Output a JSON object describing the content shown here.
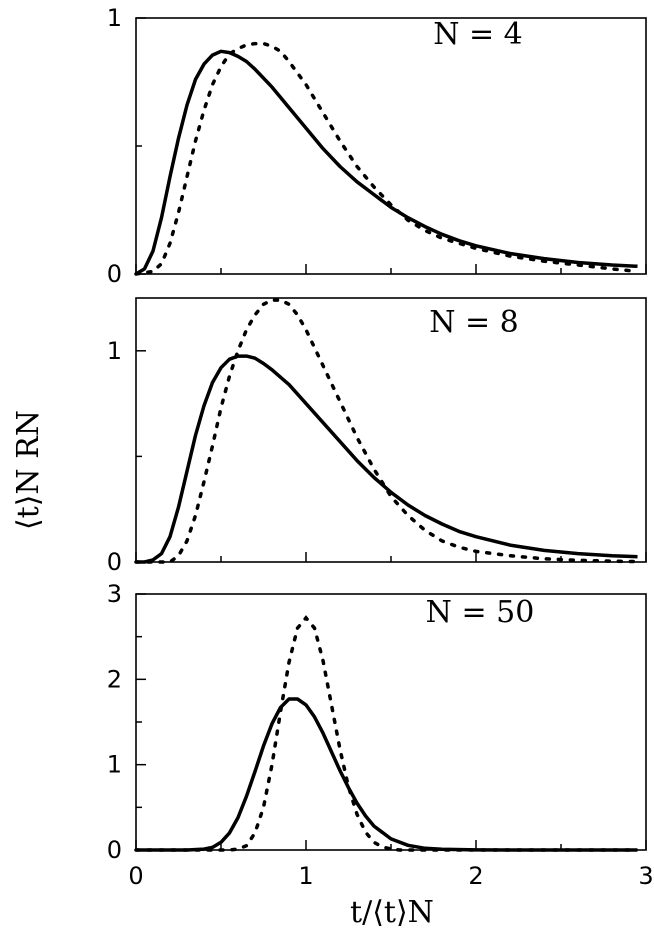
{
  "chart_data": [
    {
      "type": "line",
      "panel_label": "N = 4",
      "ylim": [
        0,
        1
      ],
      "xlim": [
        0,
        3
      ],
      "yticks": [
        "0",
        "1"
      ],
      "series": [
        {
          "style": "solid",
          "x": [
            0,
            0.05,
            0.1,
            0.15,
            0.2,
            0.25,
            0.3,
            0.35,
            0.4,
            0.45,
            0.5,
            0.55,
            0.6,
            0.65,
            0.7,
            0.8,
            0.9,
            1.0,
            1.1,
            1.2,
            1.3,
            1.4,
            1.5,
            1.6,
            1.7,
            1.8,
            1.9,
            2.0,
            2.2,
            2.4,
            2.6,
            2.8,
            2.95
          ],
          "values": [
            0,
            0.02,
            0.09,
            0.22,
            0.38,
            0.53,
            0.66,
            0.76,
            0.82,
            0.855,
            0.87,
            0.865,
            0.85,
            0.83,
            0.8,
            0.73,
            0.65,
            0.57,
            0.49,
            0.42,
            0.36,
            0.31,
            0.26,
            0.22,
            0.185,
            0.155,
            0.13,
            0.11,
            0.08,
            0.06,
            0.045,
            0.035,
            0.03
          ]
        },
        {
          "style": "dotted",
          "x": [
            0,
            0.1,
            0.15,
            0.2,
            0.25,
            0.3,
            0.35,
            0.4,
            0.45,
            0.5,
            0.55,
            0.6,
            0.65,
            0.7,
            0.75,
            0.8,
            0.85,
            0.9,
            1.0,
            1.1,
            1.2,
            1.3,
            1.4,
            1.5,
            1.6,
            1.7,
            1.8,
            1.9,
            2.0,
            2.2,
            2.4,
            2.6,
            2.8,
            2.95
          ],
          "values": [
            0,
            0.01,
            0.04,
            0.12,
            0.24,
            0.38,
            0.52,
            0.64,
            0.74,
            0.81,
            0.86,
            0.88,
            0.895,
            0.9,
            0.9,
            0.89,
            0.87,
            0.83,
            0.74,
            0.63,
            0.52,
            0.42,
            0.34,
            0.27,
            0.21,
            0.17,
            0.14,
            0.12,
            0.1,
            0.07,
            0.05,
            0.035,
            0.02,
            0.01
          ]
        }
      ]
    },
    {
      "type": "line",
      "panel_label": "N = 8",
      "ylim": [
        0,
        1.25
      ],
      "xlim": [
        0,
        3
      ],
      "yticks": [
        "0",
        "1"
      ],
      "series": [
        {
          "style": "solid",
          "x": [
            0,
            0.05,
            0.1,
            0.15,
            0.2,
            0.25,
            0.3,
            0.35,
            0.4,
            0.45,
            0.5,
            0.55,
            0.6,
            0.65,
            0.7,
            0.75,
            0.8,
            0.9,
            1.0,
            1.1,
            1.2,
            1.3,
            1.4,
            1.5,
            1.6,
            1.7,
            1.8,
            1.9,
            2.0,
            2.2,
            2.4,
            2.6,
            2.8,
            2.95
          ],
          "values": [
            0,
            0.0,
            0.01,
            0.04,
            0.12,
            0.26,
            0.43,
            0.6,
            0.74,
            0.85,
            0.92,
            0.96,
            0.975,
            0.975,
            0.965,
            0.94,
            0.91,
            0.84,
            0.75,
            0.66,
            0.57,
            0.48,
            0.4,
            0.33,
            0.27,
            0.22,
            0.18,
            0.145,
            0.12,
            0.08,
            0.055,
            0.04,
            0.03,
            0.025
          ]
        },
        {
          "style": "dotted",
          "x": [
            0,
            0.2,
            0.25,
            0.3,
            0.35,
            0.4,
            0.45,
            0.5,
            0.55,
            0.6,
            0.65,
            0.7,
            0.75,
            0.8,
            0.85,
            0.9,
            0.95,
            1.0,
            1.1,
            1.2,
            1.3,
            1.4,
            1.5,
            1.6,
            1.7,
            1.8,
            1.9,
            2.0,
            2.2,
            2.4,
            2.6,
            2.8,
            2.95
          ],
          "values": [
            0,
            0.0,
            0.03,
            0.1,
            0.22,
            0.38,
            0.55,
            0.73,
            0.88,
            1.0,
            1.1,
            1.17,
            1.22,
            1.24,
            1.24,
            1.22,
            1.17,
            1.1,
            0.93,
            0.76,
            0.59,
            0.44,
            0.31,
            0.22,
            0.15,
            0.1,
            0.07,
            0.05,
            0.03,
            0.015,
            0.008,
            0.004,
            0.002
          ]
        }
      ]
    },
    {
      "type": "line",
      "panel_label": "N = 50",
      "ylim": [
        0,
        3
      ],
      "xlim": [
        0,
        3
      ],
      "yticks": [
        "0",
        "1",
        "2",
        "3"
      ],
      "xticks": [
        "0",
        "1",
        "2",
        "3"
      ],
      "xlabel": "t/⟨t⟩N",
      "series": [
        {
          "style": "solid",
          "x": [
            0,
            0.3,
            0.4,
            0.45,
            0.5,
            0.55,
            0.6,
            0.65,
            0.7,
            0.75,
            0.8,
            0.85,
            0.9,
            0.95,
            1.0,
            1.05,
            1.1,
            1.15,
            1.2,
            1.25,
            1.3,
            1.35,
            1.4,
            1.5,
            1.6,
            1.7,
            1.8,
            2.0,
            2.5,
            2.95
          ],
          "values": [
            0,
            0.0,
            0.01,
            0.03,
            0.09,
            0.2,
            0.38,
            0.63,
            0.92,
            1.22,
            1.48,
            1.67,
            1.77,
            1.77,
            1.7,
            1.56,
            1.37,
            1.15,
            0.93,
            0.73,
            0.55,
            0.4,
            0.28,
            0.13,
            0.055,
            0.02,
            0.008,
            0.001,
            0,
            0
          ]
        },
        {
          "style": "dotted",
          "x": [
            0,
            0.55,
            0.6,
            0.65,
            0.7,
            0.75,
            0.8,
            0.85,
            0.9,
            0.95,
            1.0,
            1.05,
            1.1,
            1.15,
            1.2,
            1.25,
            1.3,
            1.35,
            1.4,
            1.45,
            1.5,
            1.55,
            2.0,
            2.95
          ],
          "values": [
            0,
            0.0,
            0.01,
            0.05,
            0.2,
            0.5,
            1.0,
            1.62,
            2.2,
            2.6,
            2.72,
            2.6,
            2.22,
            1.7,
            1.18,
            0.74,
            0.42,
            0.21,
            0.09,
            0.035,
            0.012,
            0.0,
            0,
            0
          ]
        }
      ]
    }
  ],
  "shared_ylabel": "⟨t⟩N RN"
}
